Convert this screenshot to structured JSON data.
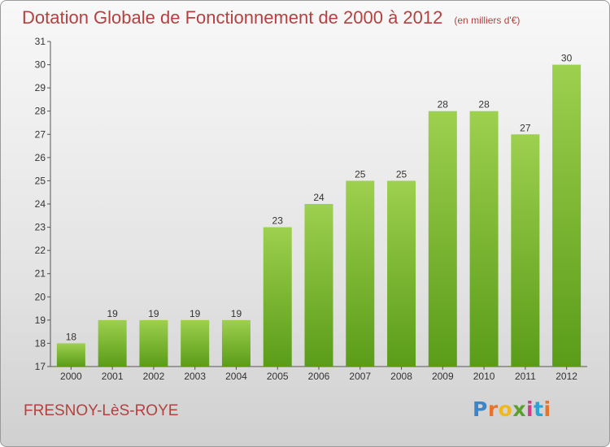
{
  "header": {
    "title": "Dotation Globale de Fonctionnement de 2000 à 2012",
    "unit": "(en milliers d'€)"
  },
  "footer": {
    "commune": "FRESNOY-LèS-ROYE",
    "brand": "Proxiti",
    "brand_colors": [
      "#3a86c8",
      "#e8742a",
      "#f0b81f",
      "#5aa02c",
      "#d23a8a",
      "#2ba3d4",
      "#e8742a"
    ]
  },
  "colors": {
    "bar_top": "#9dd04e",
    "bar_bottom": "#5a9c18",
    "title": "#b4413f",
    "axis": "#555555"
  },
  "chart_data": {
    "type": "bar",
    "categories": [
      "2000",
      "2001",
      "2002",
      "2003",
      "2004",
      "2005",
      "2006",
      "2007",
      "2008",
      "2009",
      "2010",
      "2011",
      "2012"
    ],
    "values": [
      18,
      19,
      19,
      19,
      19,
      23,
      24,
      25,
      25,
      28,
      28,
      27,
      30
    ],
    "ylim": [
      17,
      31
    ],
    "yticks": [
      17,
      18,
      19,
      20,
      21,
      22,
      23,
      24,
      25,
      26,
      27,
      28,
      29,
      30,
      31
    ],
    "grid": false,
    "data_labels": true
  }
}
